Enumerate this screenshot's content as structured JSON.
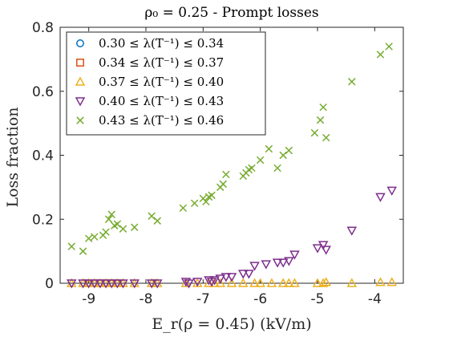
{
  "chart_data": {
    "type": "scatter",
    "title": "ρ₀ = 0.25 - Prompt losses",
    "xlabel": "E_r(ρ = 0.45) (kV/m)",
    "ylabel": "Loss fraction",
    "xlim": [
      -9.5,
      -3.5
    ],
    "ylim": [
      0,
      0.8
    ],
    "xticks": [
      -9,
      -8,
      -7,
      -6,
      -5,
      -4
    ],
    "yticks": [
      0,
      0.2,
      0.4,
      0.6,
      0.8
    ],
    "xtick_labels": [
      "-9",
      "-8",
      "-7",
      "-6",
      "-5",
      "-4"
    ],
    "ytick_labels": [
      "0",
      "0.2",
      "0.4",
      "0.6",
      "0.8"
    ],
    "grid": false,
    "legend_position": "top-left",
    "series": [
      {
        "name": "0.30 ≤ λ(T⁻¹) ≤ 0.34",
        "marker": "circle",
        "color": "#0072BD",
        "points": []
      },
      {
        "name": "0.34 ≤ λ(T⁻¹) ≤ 0.37",
        "marker": "square",
        "color": "#D95319",
        "points": []
      },
      {
        "name": "0.37 ≤ λ(T⁻¹) ≤ 0.40",
        "marker": "triangle-up",
        "color": "#EDB120",
        "points": [
          [
            -9.3,
            0.0
          ],
          [
            -9.1,
            0.0
          ],
          [
            -9.0,
            0.0
          ],
          [
            -8.9,
            0.0
          ],
          [
            -8.8,
            0.0
          ],
          [
            -8.7,
            0.0
          ],
          [
            -8.6,
            0.0
          ],
          [
            -8.5,
            0.0
          ],
          [
            -8.4,
            0.0
          ],
          [
            -8.2,
            0.0
          ],
          [
            -7.9,
            0.0
          ],
          [
            -7.8,
            0.0
          ],
          [
            -7.3,
            0.0
          ],
          [
            -7.1,
            0.0
          ],
          [
            -6.9,
            0.0
          ],
          [
            -6.8,
            0.0
          ],
          [
            -6.7,
            0.0
          ],
          [
            -6.5,
            0.0
          ],
          [
            -6.3,
            0.0
          ],
          [
            -6.1,
            0.0
          ],
          [
            -6.0,
            0.0
          ],
          [
            -5.8,
            0.0
          ],
          [
            -5.6,
            0.0
          ],
          [
            -5.5,
            0.0
          ],
          [
            -5.4,
            0.0
          ],
          [
            -5.0,
            0.0
          ],
          [
            -4.9,
            0.0
          ],
          [
            -4.85,
            0.003
          ],
          [
            -4.4,
            0.0
          ],
          [
            -3.9,
            0.003
          ],
          [
            -3.7,
            0.003
          ]
        ]
      },
      {
        "name": "0.40 ≤ λ(T⁻¹) ≤ 0.43",
        "marker": "triangle-down",
        "color": "#7E2F8E",
        "points": [
          [
            -9.3,
            0.0
          ],
          [
            -9.1,
            0.0
          ],
          [
            -9.0,
            0.0
          ],
          [
            -8.9,
            0.0
          ],
          [
            -8.8,
            0.0
          ],
          [
            -8.7,
            0.0
          ],
          [
            -8.6,
            0.0
          ],
          [
            -8.5,
            0.0
          ],
          [
            -8.4,
            0.0
          ],
          [
            -8.2,
            0.0
          ],
          [
            -7.9,
            0.0
          ],
          [
            -7.8,
            0.0
          ],
          [
            -7.3,
            0.005
          ],
          [
            -7.25,
            0.0
          ],
          [
            -7.1,
            0.005
          ],
          [
            -6.9,
            0.01
          ],
          [
            -6.85,
            0.005
          ],
          [
            -6.8,
            0.01
          ],
          [
            -6.7,
            0.015
          ],
          [
            -6.6,
            0.02
          ],
          [
            -6.5,
            0.02
          ],
          [
            -6.3,
            0.03
          ],
          [
            -6.2,
            0.03
          ],
          [
            -6.1,
            0.055
          ],
          [
            -5.9,
            0.06
          ],
          [
            -5.7,
            0.065
          ],
          [
            -5.6,
            0.065
          ],
          [
            -5.5,
            0.07
          ],
          [
            -5.4,
            0.09
          ],
          [
            -5.0,
            0.11
          ],
          [
            -4.9,
            0.12
          ],
          [
            -4.85,
            0.105
          ],
          [
            -4.4,
            0.165
          ],
          [
            -3.9,
            0.27
          ],
          [
            -3.7,
            0.29
          ]
        ]
      },
      {
        "name": "0.43 ≤ λ(T⁻¹) ≤ 0.46",
        "marker": "cross",
        "color": "#77AC30",
        "points": [
          [
            -9.3,
            0.115
          ],
          [
            -9.1,
            0.1
          ],
          [
            -9.0,
            0.14
          ],
          [
            -8.9,
            0.145
          ],
          [
            -8.75,
            0.15
          ],
          [
            -8.7,
            0.16
          ],
          [
            -8.65,
            0.2
          ],
          [
            -8.6,
            0.215
          ],
          [
            -8.55,
            0.18
          ],
          [
            -8.5,
            0.185
          ],
          [
            -8.4,
            0.17
          ],
          [
            -8.2,
            0.175
          ],
          [
            -7.9,
            0.21
          ],
          [
            -7.8,
            0.195
          ],
          [
            -7.35,
            0.235
          ],
          [
            -7.15,
            0.25
          ],
          [
            -7.0,
            0.265
          ],
          [
            -6.95,
            0.255
          ],
          [
            -6.9,
            0.27
          ],
          [
            -6.85,
            0.275
          ],
          [
            -6.7,
            0.3
          ],
          [
            -6.65,
            0.31
          ],
          [
            -6.6,
            0.34
          ],
          [
            -6.3,
            0.335
          ],
          [
            -6.25,
            0.345
          ],
          [
            -6.2,
            0.355
          ],
          [
            -6.15,
            0.36
          ],
          [
            -6.0,
            0.385
          ],
          [
            -5.85,
            0.42
          ],
          [
            -5.7,
            0.36
          ],
          [
            -5.6,
            0.4
          ],
          [
            -5.5,
            0.415
          ],
          [
            -5.05,
            0.47
          ],
          [
            -4.95,
            0.51
          ],
          [
            -4.9,
            0.55
          ],
          [
            -4.85,
            0.455
          ],
          [
            -4.4,
            0.63
          ],
          [
            -3.9,
            0.715
          ],
          [
            -3.75,
            0.74
          ]
        ]
      }
    ]
  }
}
